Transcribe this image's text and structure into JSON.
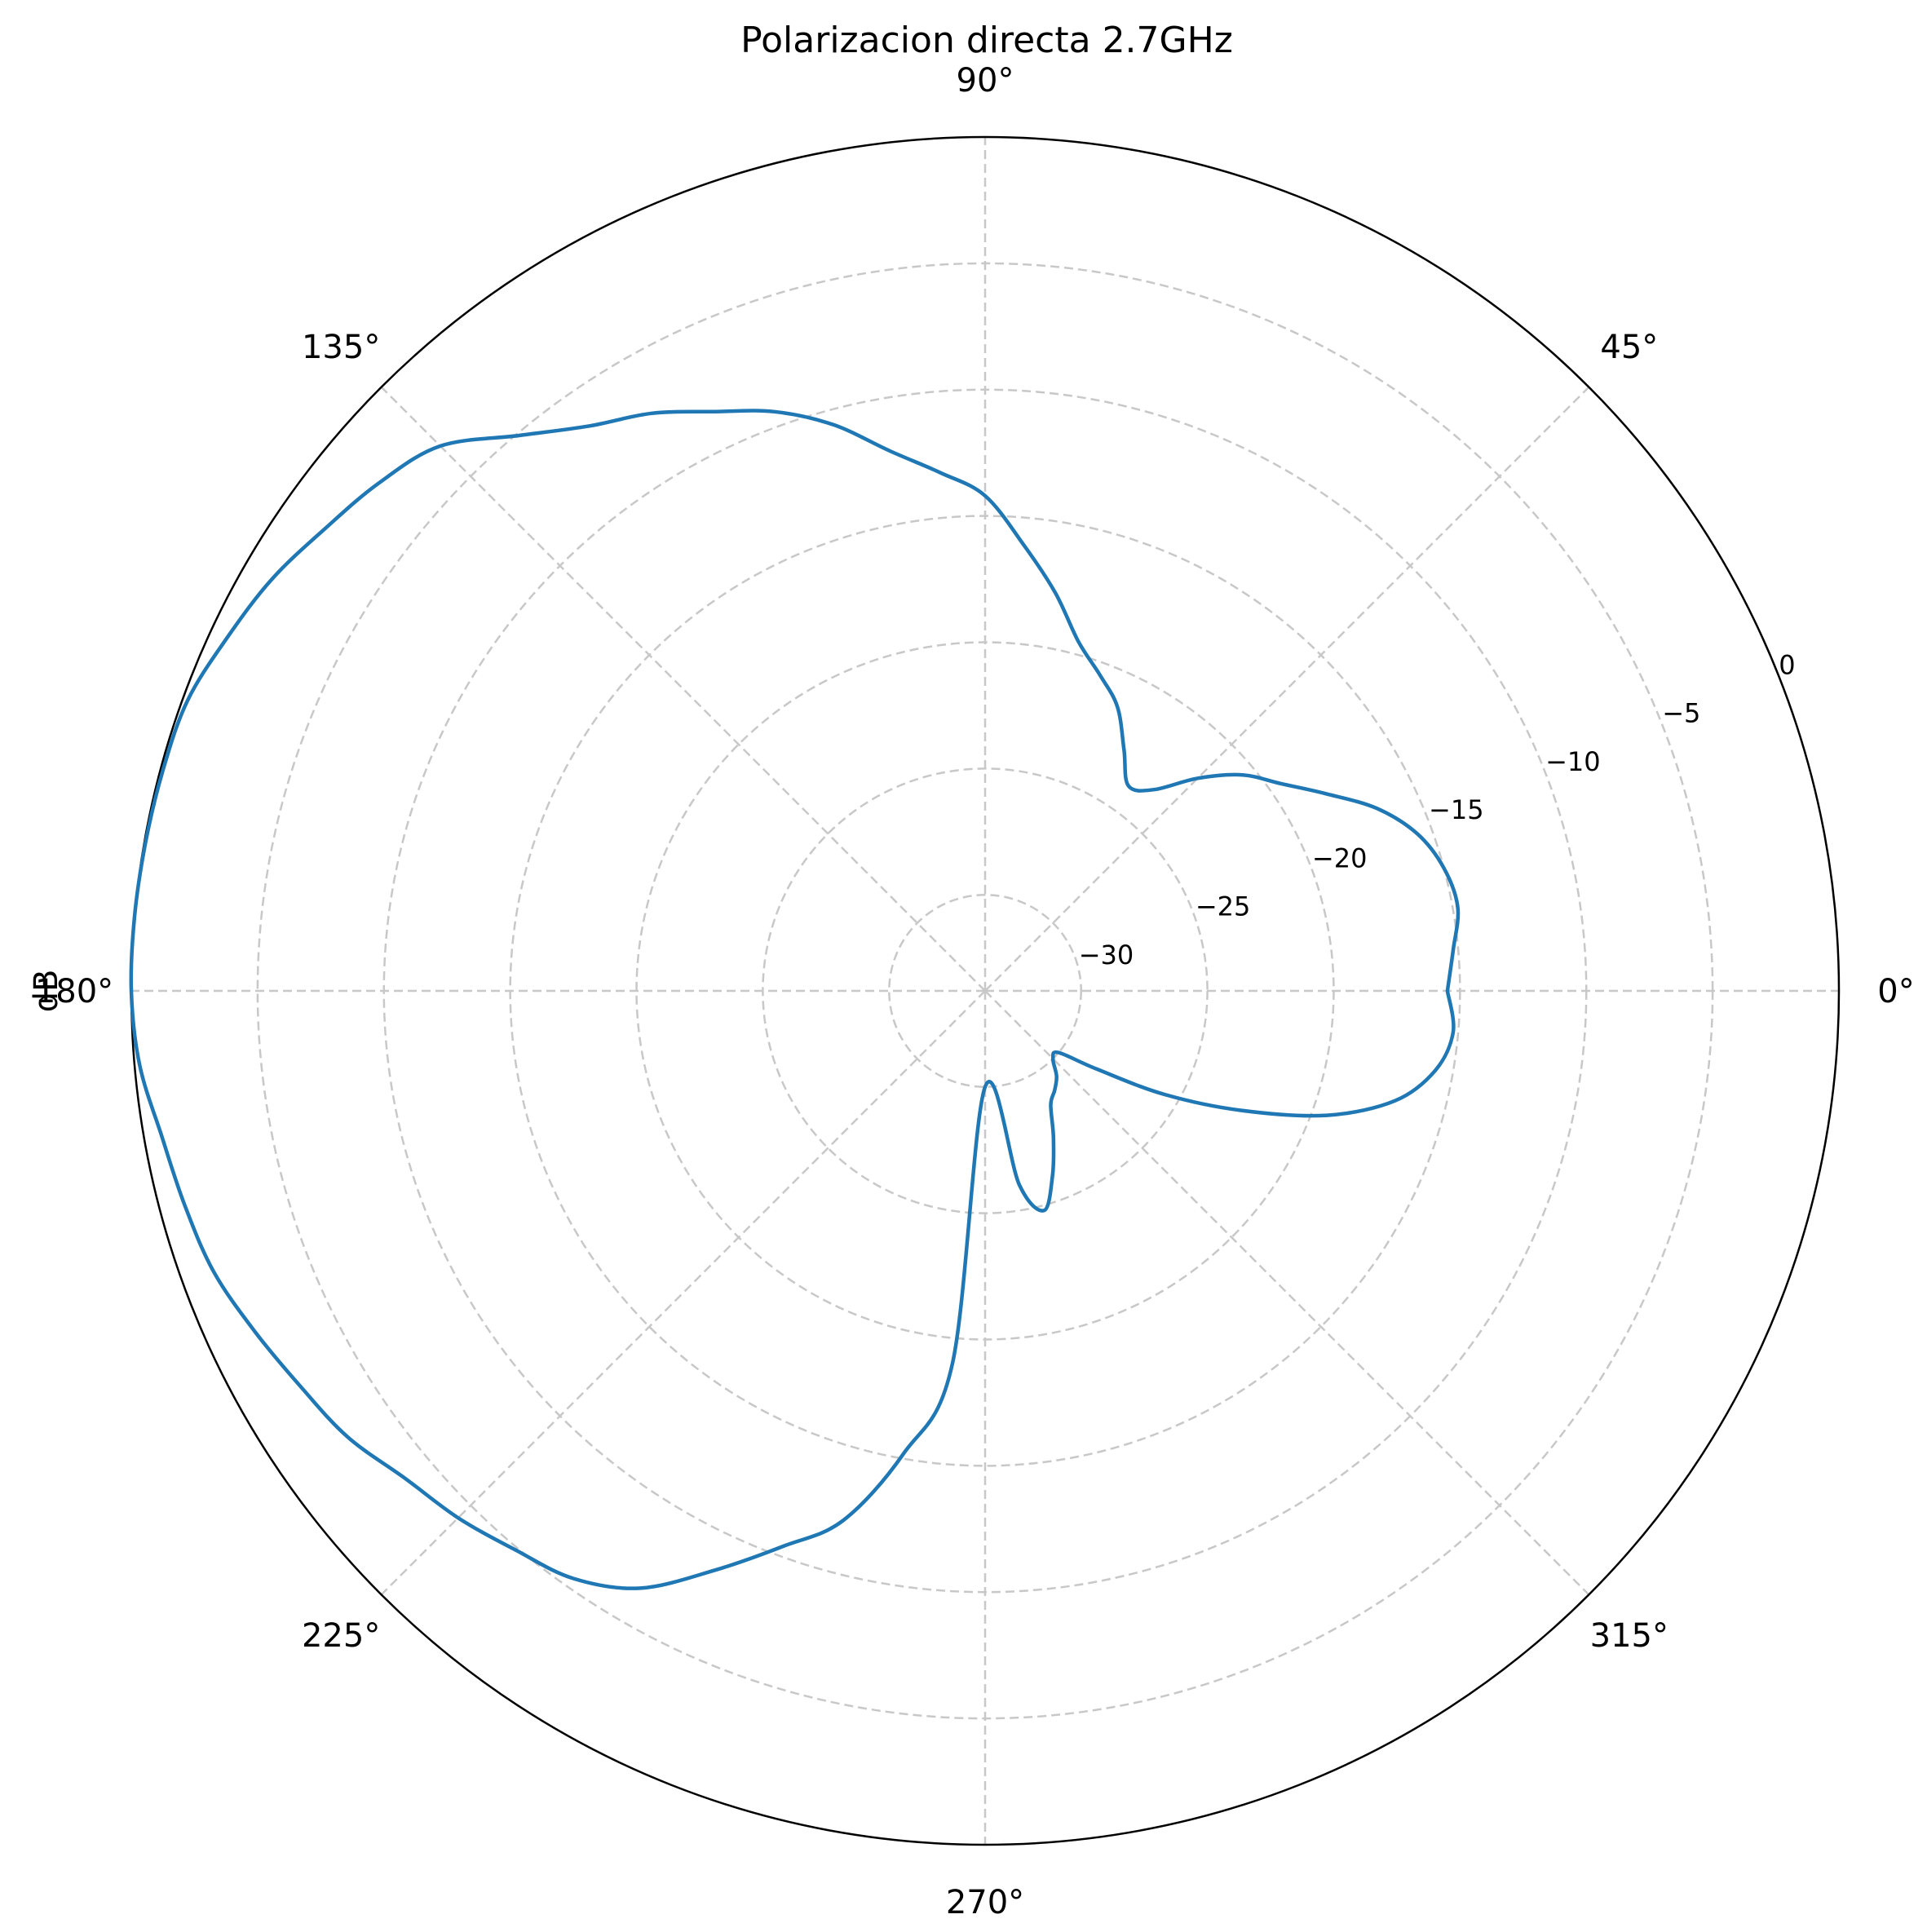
{
  "chart_data": {
    "type": "polar-line",
    "title": "Polarizacion directa 2.7GHz",
    "ylabel": "dB",
    "angle_ticks": [
      {
        "deg": 0,
        "label": "0°"
      },
      {
        "deg": 45,
        "label": "45°"
      },
      {
        "deg": 90,
        "label": "90°"
      },
      {
        "deg": 135,
        "label": "135°"
      },
      {
        "deg": 180,
        "label": "180°"
      },
      {
        "deg": 225,
        "label": "225°"
      },
      {
        "deg": 270,
        "label": "270°"
      },
      {
        "deg": 315,
        "label": "315°"
      }
    ],
    "radial_ticks": [
      {
        "value": -30,
        "label": "−30"
      },
      {
        "value": -25,
        "label": "−25"
      },
      {
        "value": -20,
        "label": "−20"
      },
      {
        "value": -15,
        "label": "−15"
      },
      {
        "value": -10,
        "label": "−10"
      },
      {
        "value": -5,
        "label": "−5"
      },
      {
        "value": 0,
        "label": "0"
      }
    ],
    "rlim": [
      -33.8,
      0.0
    ],
    "radial_label_angle_deg": 22.5,
    "grid": true,
    "colors": {
      "series": "#1f77b4",
      "grid": "#c8c8c8",
      "frame": "#000000"
    },
    "series": [
      {
        "points": [
          [
            0,
            -15.5
          ],
          [
            5,
            -15.2
          ],
          [
            10,
            -14.8
          ],
          [
            15,
            -15.0
          ],
          [
            20,
            -15.6
          ],
          [
            25,
            -16.7
          ],
          [
            30,
            -18.2
          ],
          [
            35,
            -19.5
          ],
          [
            40,
            -20.5
          ],
          [
            45,
            -21.9
          ],
          [
            50,
            -23.4
          ],
          [
            55,
            -23.9
          ],
          [
            60,
            -22.8
          ],
          [
            65,
            -21.4
          ],
          [
            70,
            -20.5
          ],
          [
            75,
            -19.5
          ],
          [
            80,
            -17.8
          ],
          [
            85,
            -16.1
          ],
          [
            90,
            -14.2
          ],
          [
            95,
            -13.2
          ],
          [
            100,
            -12.1
          ],
          [
            105,
            -10.6
          ],
          [
            110,
            -9.4
          ],
          [
            115,
            -8.5
          ],
          [
            120,
            -7.4
          ],
          [
            125,
            -6.5
          ],
          [
            130,
            -5.1
          ],
          [
            135,
            -3.3
          ],
          [
            140,
            -2.5
          ],
          [
            145,
            -1.9
          ],
          [
            150,
            -1.2
          ],
          [
            155,
            -0.7
          ],
          [
            160,
            -0.2
          ],
          [
            165,
            -0.1
          ],
          [
            170,
            -0.05
          ],
          [
            175,
            0.0
          ],
          [
            180,
            0.0
          ],
          [
            185,
            -0.2
          ],
          [
            190,
            -0.7
          ],
          [
            195,
            -1.0
          ],
          [
            200,
            -1.3
          ],
          [
            205,
            -1.9
          ],
          [
            210,
            -2.5
          ],
          [
            215,
            -3.0
          ],
          [
            220,
            -3.8
          ],
          [
            225,
            -4.3
          ],
          [
            230,
            -4.9
          ],
          [
            235,
            -5.4
          ],
          [
            240,
            -6.5
          ],
          [
            245,
            -8.5
          ],
          [
            250,
            -10.4
          ],
          [
            255,
            -12.1
          ],
          [
            260,
            -15.2
          ],
          [
            265,
            -19.0
          ],
          [
            270,
            -30.0
          ],
          [
            280,
            -26.0
          ],
          [
            285,
            -24.8
          ],
          [
            290,
            -26.0
          ],
          [
            295,
            -27.4
          ],
          [
            300,
            -28.6
          ],
          [
            305,
            -29.0
          ],
          [
            310,
            -29.4
          ],
          [
            315,
            -30.0
          ],
          [
            320,
            -30.0
          ],
          [
            325,
            -28.4
          ],
          [
            330,
            -25.6
          ],
          [
            335,
            -22.6
          ],
          [
            340,
            -19.4
          ],
          [
            345,
            -17.0
          ],
          [
            350,
            -15.7
          ],
          [
            355,
            -15.2
          ],
          [
            360,
            -15.5
          ]
        ]
      }
    ]
  }
}
